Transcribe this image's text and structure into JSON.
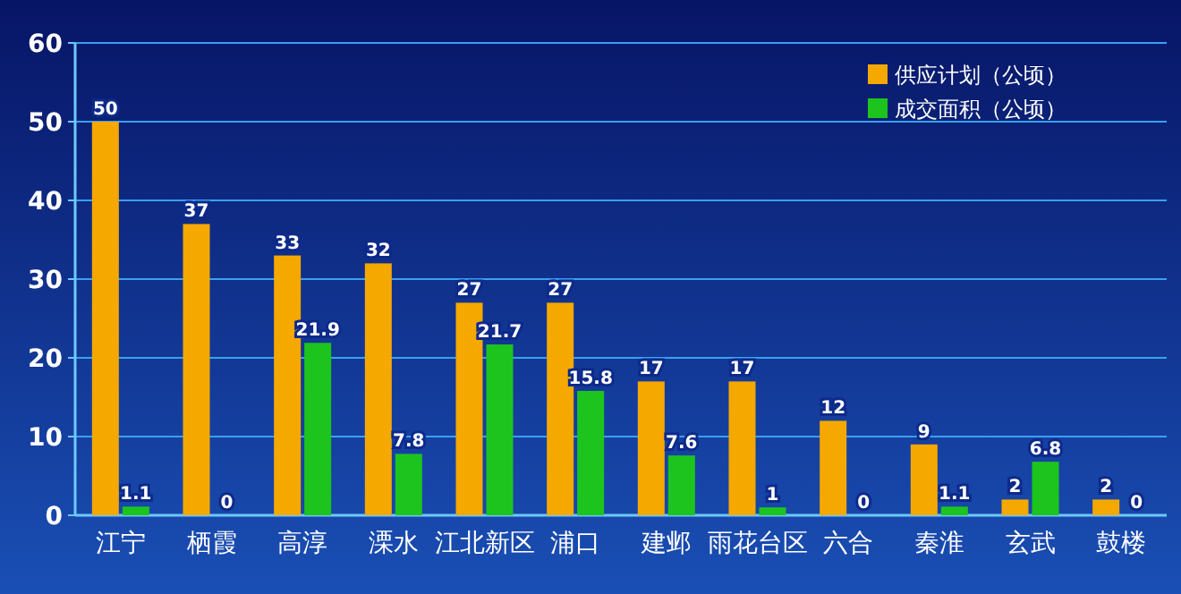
{
  "chart_data": {
    "type": "bar",
    "categories": [
      "江宁",
      "栖霞",
      "高淳",
      "溧水",
      "江北新区",
      "浦口",
      "建邺",
      "雨花台区",
      "六合",
      "秦淮",
      "玄武",
      "鼓楼"
    ],
    "series": [
      {
        "name": "供应计划（公顷）",
        "color": "#f5a800",
        "values": [
          50,
          37,
          33,
          32,
          27,
          27,
          17,
          17,
          12,
          9,
          2,
          2
        ]
      },
      {
        "name": "成交面积（公顷）",
        "color": "#1ec41e",
        "values": [
          1.1,
          0,
          21.9,
          7.8,
          21.7,
          15.8,
          7.6,
          1,
          0,
          1.1,
          6.8,
          0
        ]
      }
    ],
    "ylim": [
      0,
      60
    ],
    "yticks": [
      0,
      10,
      20,
      30,
      40,
      50,
      60
    ],
    "grid": "y",
    "legend": "top right",
    "data_labels": true
  }
}
